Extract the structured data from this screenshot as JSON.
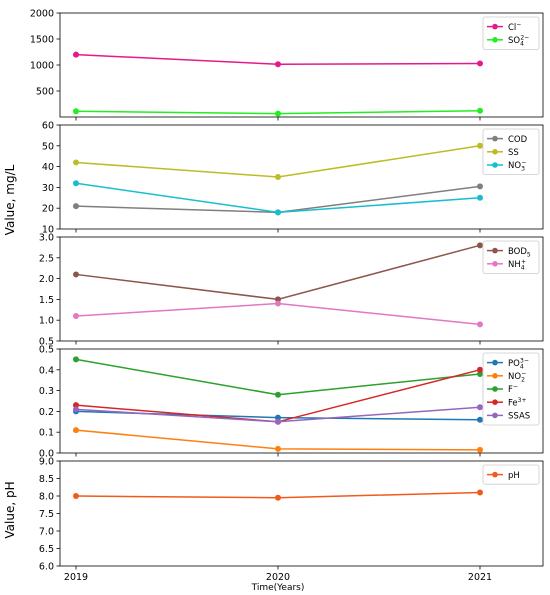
{
  "xlabel": "Time(Years)",
  "ylabel_shared": "Value, mg/L",
  "chart_data": [
    {
      "type": "line",
      "x": [
        "2019",
        "2020",
        "2021"
      ],
      "ylim": [
        0,
        2000
      ],
      "yticks": [
        500,
        1000,
        1500,
        2000
      ],
      "ytick_labels": [
        "500",
        "1000",
        "1500",
        "2000"
      ],
      "legend": "top-right",
      "series": [
        {
          "name": "Cl",
          "sup": "−",
          "sub": "",
          "color": "#e5198a",
          "values": [
            1200,
            1015,
            1030
          ]
        },
        {
          "name": "SO",
          "sup": "2−",
          "sub": "4",
          "color": "#22ee22",
          "values": [
            110,
            65,
            120
          ]
        }
      ]
    },
    {
      "type": "line",
      "x": [
        "2019",
        "2020",
        "2021"
      ],
      "ylim": [
        10,
        60
      ],
      "yticks": [
        10,
        20,
        30,
        40,
        50,
        60
      ],
      "ytick_labels": [
        "10",
        "20",
        "30",
        "40",
        "50",
        "60"
      ],
      "legend": "top-right",
      "series": [
        {
          "name": "COD",
          "sup": "",
          "sub": "",
          "color": "#7f7f7f",
          "values": [
            21,
            18,
            30.5
          ]
        },
        {
          "name": "SS",
          "sup": "",
          "sub": "",
          "color": "#bcbd22",
          "values": [
            42,
            35,
            50
          ]
        },
        {
          "name": "NO",
          "sup": "−",
          "sub": "3",
          "color": "#17becf",
          "values": [
            32,
            18,
            25
          ]
        }
      ]
    },
    {
      "type": "line",
      "x": [
        "2019",
        "2020",
        "2021"
      ],
      "ylim": [
        0.5,
        3.0
      ],
      "yticks": [
        0.5,
        1.0,
        1.5,
        2.0,
        2.5,
        3.0
      ],
      "ytick_labels": [
        "0.5",
        "1.0",
        "1.5",
        "2.0",
        "2.5",
        "3.0"
      ],
      "legend": "top-right",
      "series": [
        {
          "name": "BOD",
          "sup": "",
          "sub": "5",
          "color": "#8c564b",
          "values": [
            2.1,
            1.5,
            2.8
          ]
        },
        {
          "name": "NH",
          "sup": "+",
          "sub": "4",
          "color": "#e377c2",
          "values": [
            1.1,
            1.4,
            0.9
          ]
        }
      ]
    },
    {
      "type": "line",
      "x": [
        "2019",
        "2020",
        "2021"
      ],
      "ylim": [
        0.0,
        0.5
      ],
      "yticks": [
        0.0,
        0.1,
        0.2,
        0.3,
        0.4,
        0.5
      ],
      "ytick_labels": [
        "0.0",
        "0.1",
        "0.2",
        "0.3",
        "0.4",
        "0.5"
      ],
      "legend": "top-right",
      "series": [
        {
          "name": "PO",
          "sup": "3−",
          "sub": "4",
          "color": "#1f77b4",
          "values": [
            0.2,
            0.17,
            0.16
          ]
        },
        {
          "name": "NO",
          "sup": "−",
          "sub": "2",
          "color": "#ff7f0e",
          "values": [
            0.11,
            0.02,
            0.015
          ]
        },
        {
          "name": "F",
          "sup": "−",
          "sub": "",
          "color": "#2ca02c",
          "values": [
            0.45,
            0.28,
            0.38
          ]
        },
        {
          "name": "Fe",
          "sup": "3+",
          "sub": "",
          "color": "#d62728",
          "values": [
            0.23,
            0.15,
            0.4
          ]
        },
        {
          "name": "SSAS",
          "sup": "",
          "sub": "",
          "color": "#9467bd",
          "values": [
            0.21,
            0.15,
            0.22
          ]
        }
      ]
    },
    {
      "type": "line",
      "x": [
        "2019",
        "2020",
        "2021"
      ],
      "ylabel": "Value, pH",
      "ylim": [
        6.0,
        9.0
      ],
      "yticks": [
        6.0,
        6.5,
        7.0,
        7.5,
        8.0,
        8.5,
        9.0
      ],
      "ytick_labels": [
        "6.0",
        "6.5",
        "7.0",
        "7.5",
        "8.0",
        "8.5",
        "9.0"
      ],
      "legend": "top-right",
      "series": [
        {
          "name": "pH",
          "sup": "",
          "sub": "",
          "color": "#f05a1a",
          "values": [
            8.0,
            7.95,
            8.1
          ]
        }
      ]
    }
  ]
}
